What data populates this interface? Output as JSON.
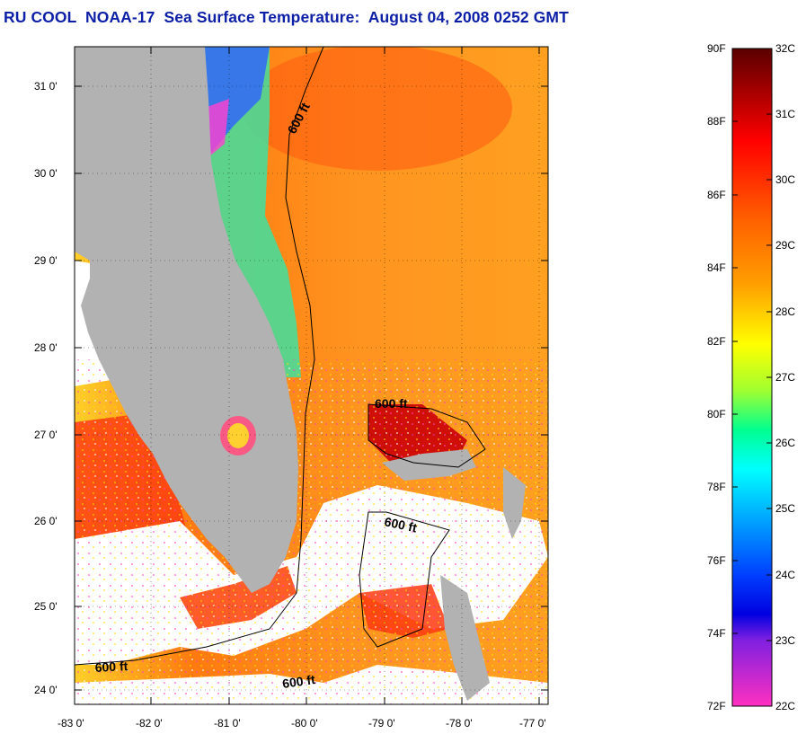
{
  "title": "RU COOL  NOAA-17  Sea Surface Temperature:  August 04, 2008 0252 GMT",
  "map": {
    "lat_range": [
      23.85,
      31.45
    ],
    "lon_range": [
      -83.0,
      -76.8
    ],
    "lat_labels": [
      "31 0'",
      "30 0'",
      "29 0'",
      "28 0'",
      "27 0'",
      "26 0'",
      "25 0'",
      "24 0'"
    ],
    "lat_values": [
      31,
      30,
      29,
      28,
      27,
      26,
      25,
      24
    ],
    "lon_labels": [
      "-83 0'",
      "-82 0'",
      "-81 0'",
      "-80 0'",
      "-79 0'",
      "-78 0'",
      "-77 0'"
    ],
    "lon_values": [
      -83,
      -82,
      -81,
      -80,
      -79,
      -78,
      -77
    ],
    "land_color": "#b2b2b2",
    "cloud_color": "#ffffff",
    "contour_labels": [
      "600 ft",
      "600 ft",
      "600 ft",
      "600 ft",
      "600 ft"
    ]
  },
  "colorbar": {
    "f_labels": [
      "90F",
      "88F",
      "86F",
      "84F",
      "82F",
      "80F",
      "78F",
      "76F",
      "74F",
      "72F"
    ],
    "c_labels": [
      "32C",
      "31C",
      "30C",
      "29C",
      "28C",
      "27C",
      "26C",
      "25C",
      "24C",
      "23C",
      "22C"
    ],
    "colors": [
      "#5a0000",
      "#c00000",
      "#ff2000",
      "#ff7000",
      "#ffb000",
      "#ffff00",
      "#a0ff30",
      "#00ff80",
      "#00ffff",
      "#0090ff",
      "#0010ff",
      "#6020d0",
      "#c020e0",
      "#ff30c0"
    ]
  }
}
